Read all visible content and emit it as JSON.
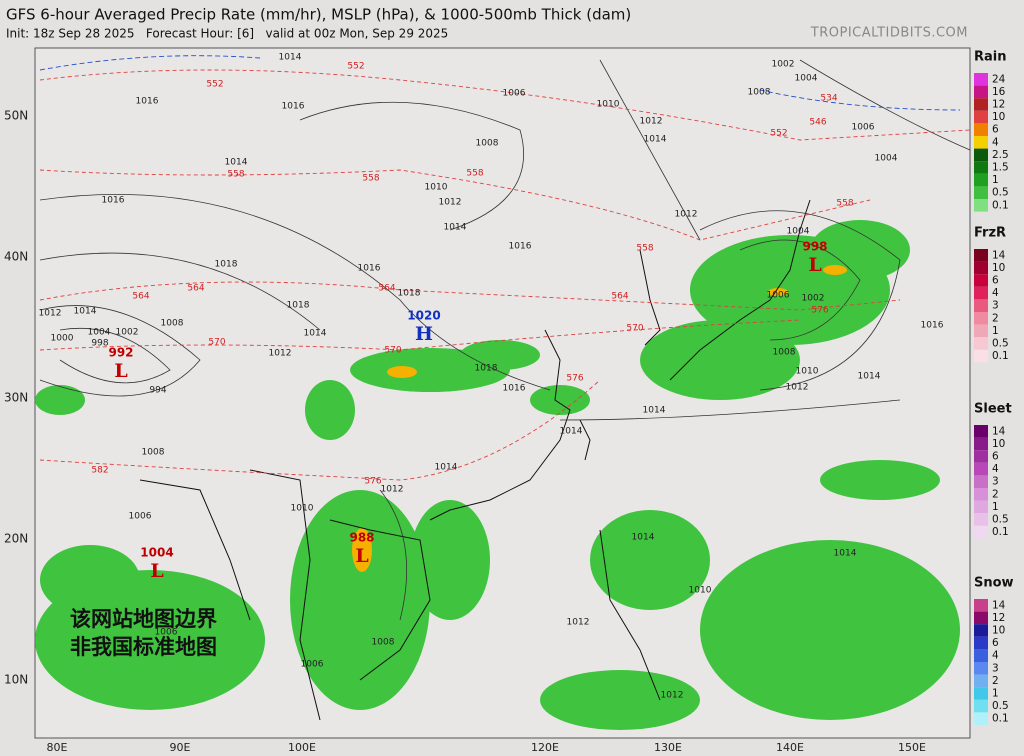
{
  "header": {
    "title": "GFS 6-hour Averaged Precip Rate (mm/hr), MSLP (hPa), & 1000-500mb Thick (dam)",
    "init": "Init: 18z Sep 28 2025   Forecast Hour: [6]   valid at 00z Mon, Sep 29 2025",
    "site": "TROPICALTIDBITS.COM"
  },
  "map": {
    "lat_labels": [
      "50N",
      "40N",
      "30N",
      "20N",
      "10N"
    ],
    "lon_labels": [
      "80E",
      "90E",
      "100E",
      "120E",
      "130E",
      "140E",
      "150E"
    ],
    "centers": [
      {
        "value": "992",
        "letter": "L",
        "color": "#c00000"
      },
      {
        "value": "1004",
        "letter": "L",
        "color": "#c00000"
      },
      {
        "value": "1020",
        "letter": "H",
        "color": "#1030c0"
      },
      {
        "value": "998",
        "letter": "L",
        "color": "#c00000"
      },
      {
        "value": "988",
        "letter": "L",
        "color": "#c00000"
      }
    ],
    "notice": [
      "该网站地图边界",
      "非我国标准地图"
    ],
    "contour_labels": [
      "1014",
      "552",
      "1006",
      "1016",
      "552",
      "1016",
      "1014",
      "558",
      "558",
      "1008",
      "1010",
      "1012",
      "558",
      "1014",
      "1016",
      "1018",
      "1016",
      "1016",
      "1018",
      "1018",
      "564",
      "564",
      "564",
      "1012",
      "1014",
      "1004",
      "1002",
      "998",
      "1000",
      "570",
      "570",
      "1012",
      "1014",
      "994",
      "1008",
      "1012",
      "1010",
      "1014",
      "1012",
      "558",
      "564",
      "570",
      "576",
      "1016",
      "1018",
      "1014",
      "1014",
      "1002",
      "1004",
      "1008",
      "534",
      "546",
      "552",
      "1006",
      "1004",
      "558",
      "1004",
      "1002",
      "1008",
      "1010",
      "1012",
      "1014",
      "1016",
      "576",
      "1006",
      "1014",
      "1012",
      "576",
      "1010",
      "1006",
      "1008",
      "582",
      "1006",
      "1008",
      "1006",
      "1014",
      "1014",
      "1012",
      "1012",
      "1010"
    ]
  },
  "legends": [
    {
      "name": "Rain",
      "items": [
        {
          "label": "24",
          "color": "#e033e0"
        },
        {
          "label": "16",
          "color": "#c71585"
        },
        {
          "label": "12",
          "color": "#b22222"
        },
        {
          "label": "10",
          "color": "#e04040"
        },
        {
          "label": "6",
          "color": "#f08000"
        },
        {
          "label": "4",
          "color": "#f5d000"
        },
        {
          "label": "2.5",
          "color": "#0a5a0a"
        },
        {
          "label": "1.5",
          "color": "#107a10"
        },
        {
          "label": "1",
          "color": "#20a020"
        },
        {
          "label": "0.5",
          "color": "#40c040"
        },
        {
          "label": "0.1",
          "color": "#80e080"
        }
      ]
    },
    {
      "name": "FrzR",
      "items": [
        {
          "label": "14",
          "color": "#7a0020"
        },
        {
          "label": "10",
          "color": "#a00030"
        },
        {
          "label": "6",
          "color": "#c8003c"
        },
        {
          "label": "4",
          "color": "#e0205a"
        },
        {
          "label": "3",
          "color": "#e85a80"
        },
        {
          "label": "2",
          "color": "#f08aa0"
        },
        {
          "label": "1",
          "color": "#f0a8b8"
        },
        {
          "label": "0.5",
          "color": "#f5c8d2"
        },
        {
          "label": "0.1",
          "color": "#fae0e6"
        }
      ]
    },
    {
      "name": "Sleet",
      "items": [
        {
          "label": "14",
          "color": "#6a006a"
        },
        {
          "label": "10",
          "color": "#8a1a8a"
        },
        {
          "label": "6",
          "color": "#a030a0"
        },
        {
          "label": "4",
          "color": "#b848b8"
        },
        {
          "label": "3",
          "color": "#c870c8"
        },
        {
          "label": "2",
          "color": "#d890d8"
        },
        {
          "label": "1",
          "color": "#e0a8e0"
        },
        {
          "label": "0.5",
          "color": "#e8c0e8"
        },
        {
          "label": "0.1",
          "color": "#f0d8f0"
        }
      ]
    },
    {
      "name": "Snow",
      "items": [
        {
          "label": "14",
          "color": "#c8408c"
        },
        {
          "label": "12",
          "color": "#8a0a6a"
        },
        {
          "label": "10",
          "color": "#1a1a9a"
        },
        {
          "label": "6",
          "color": "#2a3ac8"
        },
        {
          "label": "4",
          "color": "#3a60e0"
        },
        {
          "label": "3",
          "color": "#5a88f0"
        },
        {
          "label": "2",
          "color": "#70b0f0"
        },
        {
          "label": "1",
          "color": "#40c8e8"
        },
        {
          "label": "0.5",
          "color": "#70e0f0"
        },
        {
          "label": "0.1",
          "color": "#b0f0f8"
        }
      ]
    }
  ]
}
